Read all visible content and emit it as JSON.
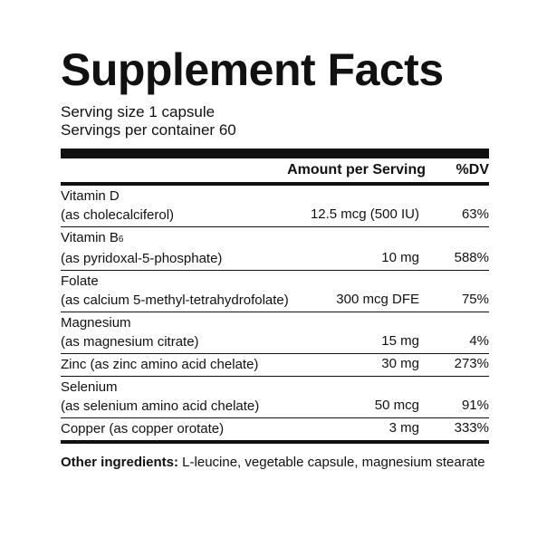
{
  "title": "Supplement Facts",
  "serving_size": "Serving size 1 capsule",
  "servings_per_container": "Servings per container 60",
  "header": {
    "amount": "Amount per Serving",
    "dv": "%DV"
  },
  "rows": [
    {
      "line1": "Vitamin D",
      "line2": "(as cholecalciferol)",
      "amount": "12.5 mcg (500 IU)",
      "dv": "63%"
    },
    {
      "line1": "Vitamin B",
      "line1_sub": "6",
      "line2": "(as pyridoxal-5-phosphate)",
      "amount": "10 mg",
      "dv": "588%"
    },
    {
      "line1": "Folate",
      "line2": "(as calcium 5-methyl-tetrahydrofolate)",
      "amount": "300 mcg DFE",
      "dv": "75%"
    },
    {
      "line1": "Magnesium",
      "line2": "(as magnesium citrate)",
      "amount": "15 mg",
      "dv": "4%"
    },
    {
      "line1": "Zinc (as zinc amino acid chelate)",
      "amount": "30 mg",
      "dv": "273%"
    },
    {
      "line1": "Selenium",
      "line2": "(as selenium amino acid chelate)",
      "amount": "50 mcg",
      "dv": "91%"
    },
    {
      "line1": "Copper (as copper orotate)",
      "amount": "3 mg",
      "dv": "333%"
    }
  ],
  "other_ingredients": {
    "label": "Other ingredients:",
    "text": " L-leucine, vegetable capsule, magnesium stearate"
  }
}
